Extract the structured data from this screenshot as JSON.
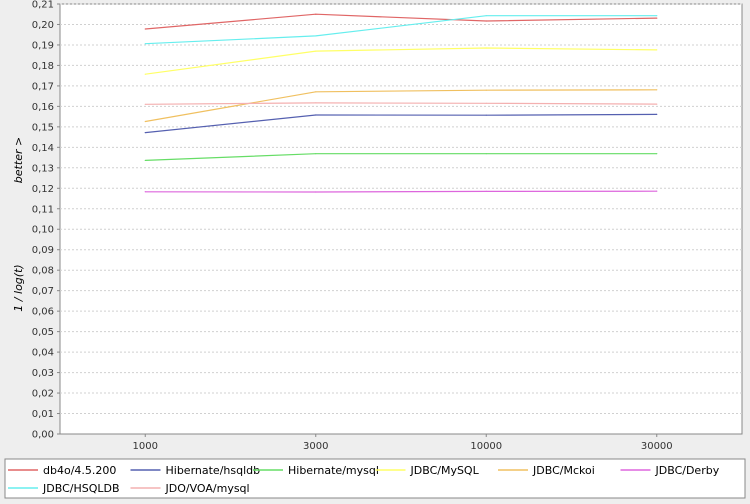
{
  "chart_data": {
    "type": "line",
    "categories": [
      "1000",
      "3000",
      "10000",
      "30000"
    ],
    "ylabel": "1 / log(t)",
    "ylabel_note": "better >",
    "ylim": [
      0,
      0.21
    ],
    "y_ticks": [
      "0,00",
      "0,01",
      "0,02",
      "0,03",
      "0,04",
      "0,05",
      "0,06",
      "0,07",
      "0,08",
      "0,09",
      "0,10",
      "0,11",
      "0,12",
      "0,13",
      "0,14",
      "0,15",
      "0,16",
      "0,17",
      "0,18",
      "0,19",
      "0,20",
      "0,21"
    ],
    "grid": true,
    "legend_position": "bottom",
    "series": [
      {
        "name": "db4o/4.5.200",
        "color": "#e06666",
        "values": [
          0.1978,
          0.205,
          0.2017,
          0.2031
        ]
      },
      {
        "name": "Hibernate/hsqldb",
        "color": "#5560b0",
        "values": [
          0.1472,
          0.1558,
          0.1557,
          0.1561
        ]
      },
      {
        "name": "Hibernate/mysql",
        "color": "#66dd66",
        "values": [
          0.1336,
          0.1369,
          0.1369,
          0.1369
        ]
      },
      {
        "name": "JDBC/MySQL",
        "color": "#ffff66",
        "values": [
          0.1757,
          0.187,
          0.1885,
          0.1876
        ]
      },
      {
        "name": "JDBC/Mckoi",
        "color": "#f0c060",
        "values": [
          0.1526,
          0.1671,
          0.1679,
          0.1681
        ]
      },
      {
        "name": "JDBC/Derby",
        "color": "#dd66dd",
        "values": [
          0.1183,
          0.1182,
          0.1185,
          0.1186
        ]
      },
      {
        "name": "JDBC/HSQLDB",
        "color": "#66eeee",
        "values": [
          0.1906,
          0.1944,
          0.2043,
          0.2043
        ]
      },
      {
        "name": "JDO/VOA/mysql",
        "color": "#f4b0b0",
        "values": [
          0.161,
          0.1617,
          0.1615,
          0.1611
        ]
      }
    ]
  }
}
